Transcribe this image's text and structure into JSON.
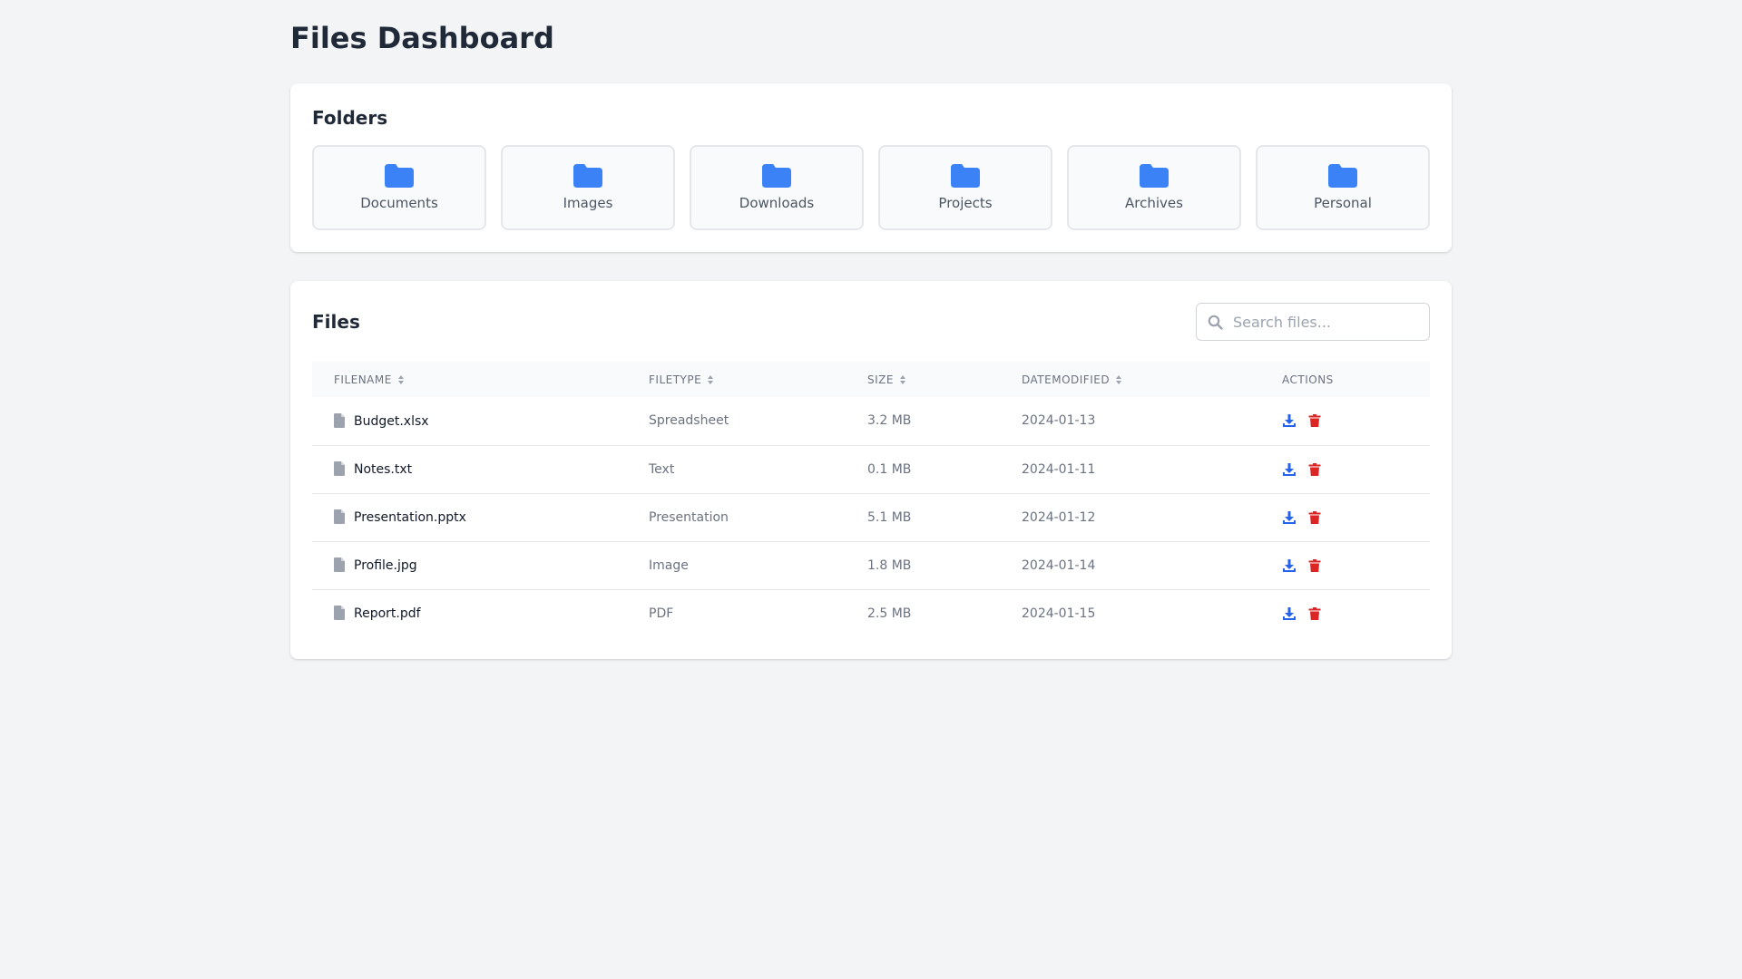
{
  "page": {
    "title": "Files Dashboard"
  },
  "folders": {
    "title": "Folders",
    "items": [
      {
        "label": "Documents",
        "icon": "folder-icon"
      },
      {
        "label": "Images",
        "icon": "folder-icon"
      },
      {
        "label": "Downloads",
        "icon": "folder-icon"
      },
      {
        "label": "Projects",
        "icon": "folder-icon"
      },
      {
        "label": "Archives",
        "icon": "folder-icon"
      },
      {
        "label": "Personal",
        "icon": "folder-icon"
      }
    ]
  },
  "files": {
    "title": "Files",
    "search": {
      "placeholder": "Search files...",
      "value": ""
    },
    "columns": [
      "FILENAME",
      "FILETYPE",
      "SIZE",
      "DATEMODIFIED",
      "ACTIONS"
    ],
    "rows": [
      {
        "filename": "Budget.xlsx",
        "filetype": "Spreadsheet",
        "size": "3.2 MB",
        "date": "2024-01-13"
      },
      {
        "filename": "Notes.txt",
        "filetype": "Text",
        "size": "0.1 MB",
        "date": "2024-01-11"
      },
      {
        "filename": "Presentation.pptx",
        "filetype": "Presentation",
        "size": "5.1 MB",
        "date": "2024-01-12"
      },
      {
        "filename": "Profile.jpg",
        "filetype": "Image",
        "size": "1.8 MB",
        "date": "2024-01-14"
      },
      {
        "filename": "Report.pdf",
        "filetype": "PDF",
        "size": "2.5 MB",
        "date": "2024-01-15"
      }
    ]
  },
  "colors": {
    "accent": "#3b82f6",
    "download": "#2563eb",
    "delete": "#dc2626",
    "background": "#f3f4f6"
  }
}
